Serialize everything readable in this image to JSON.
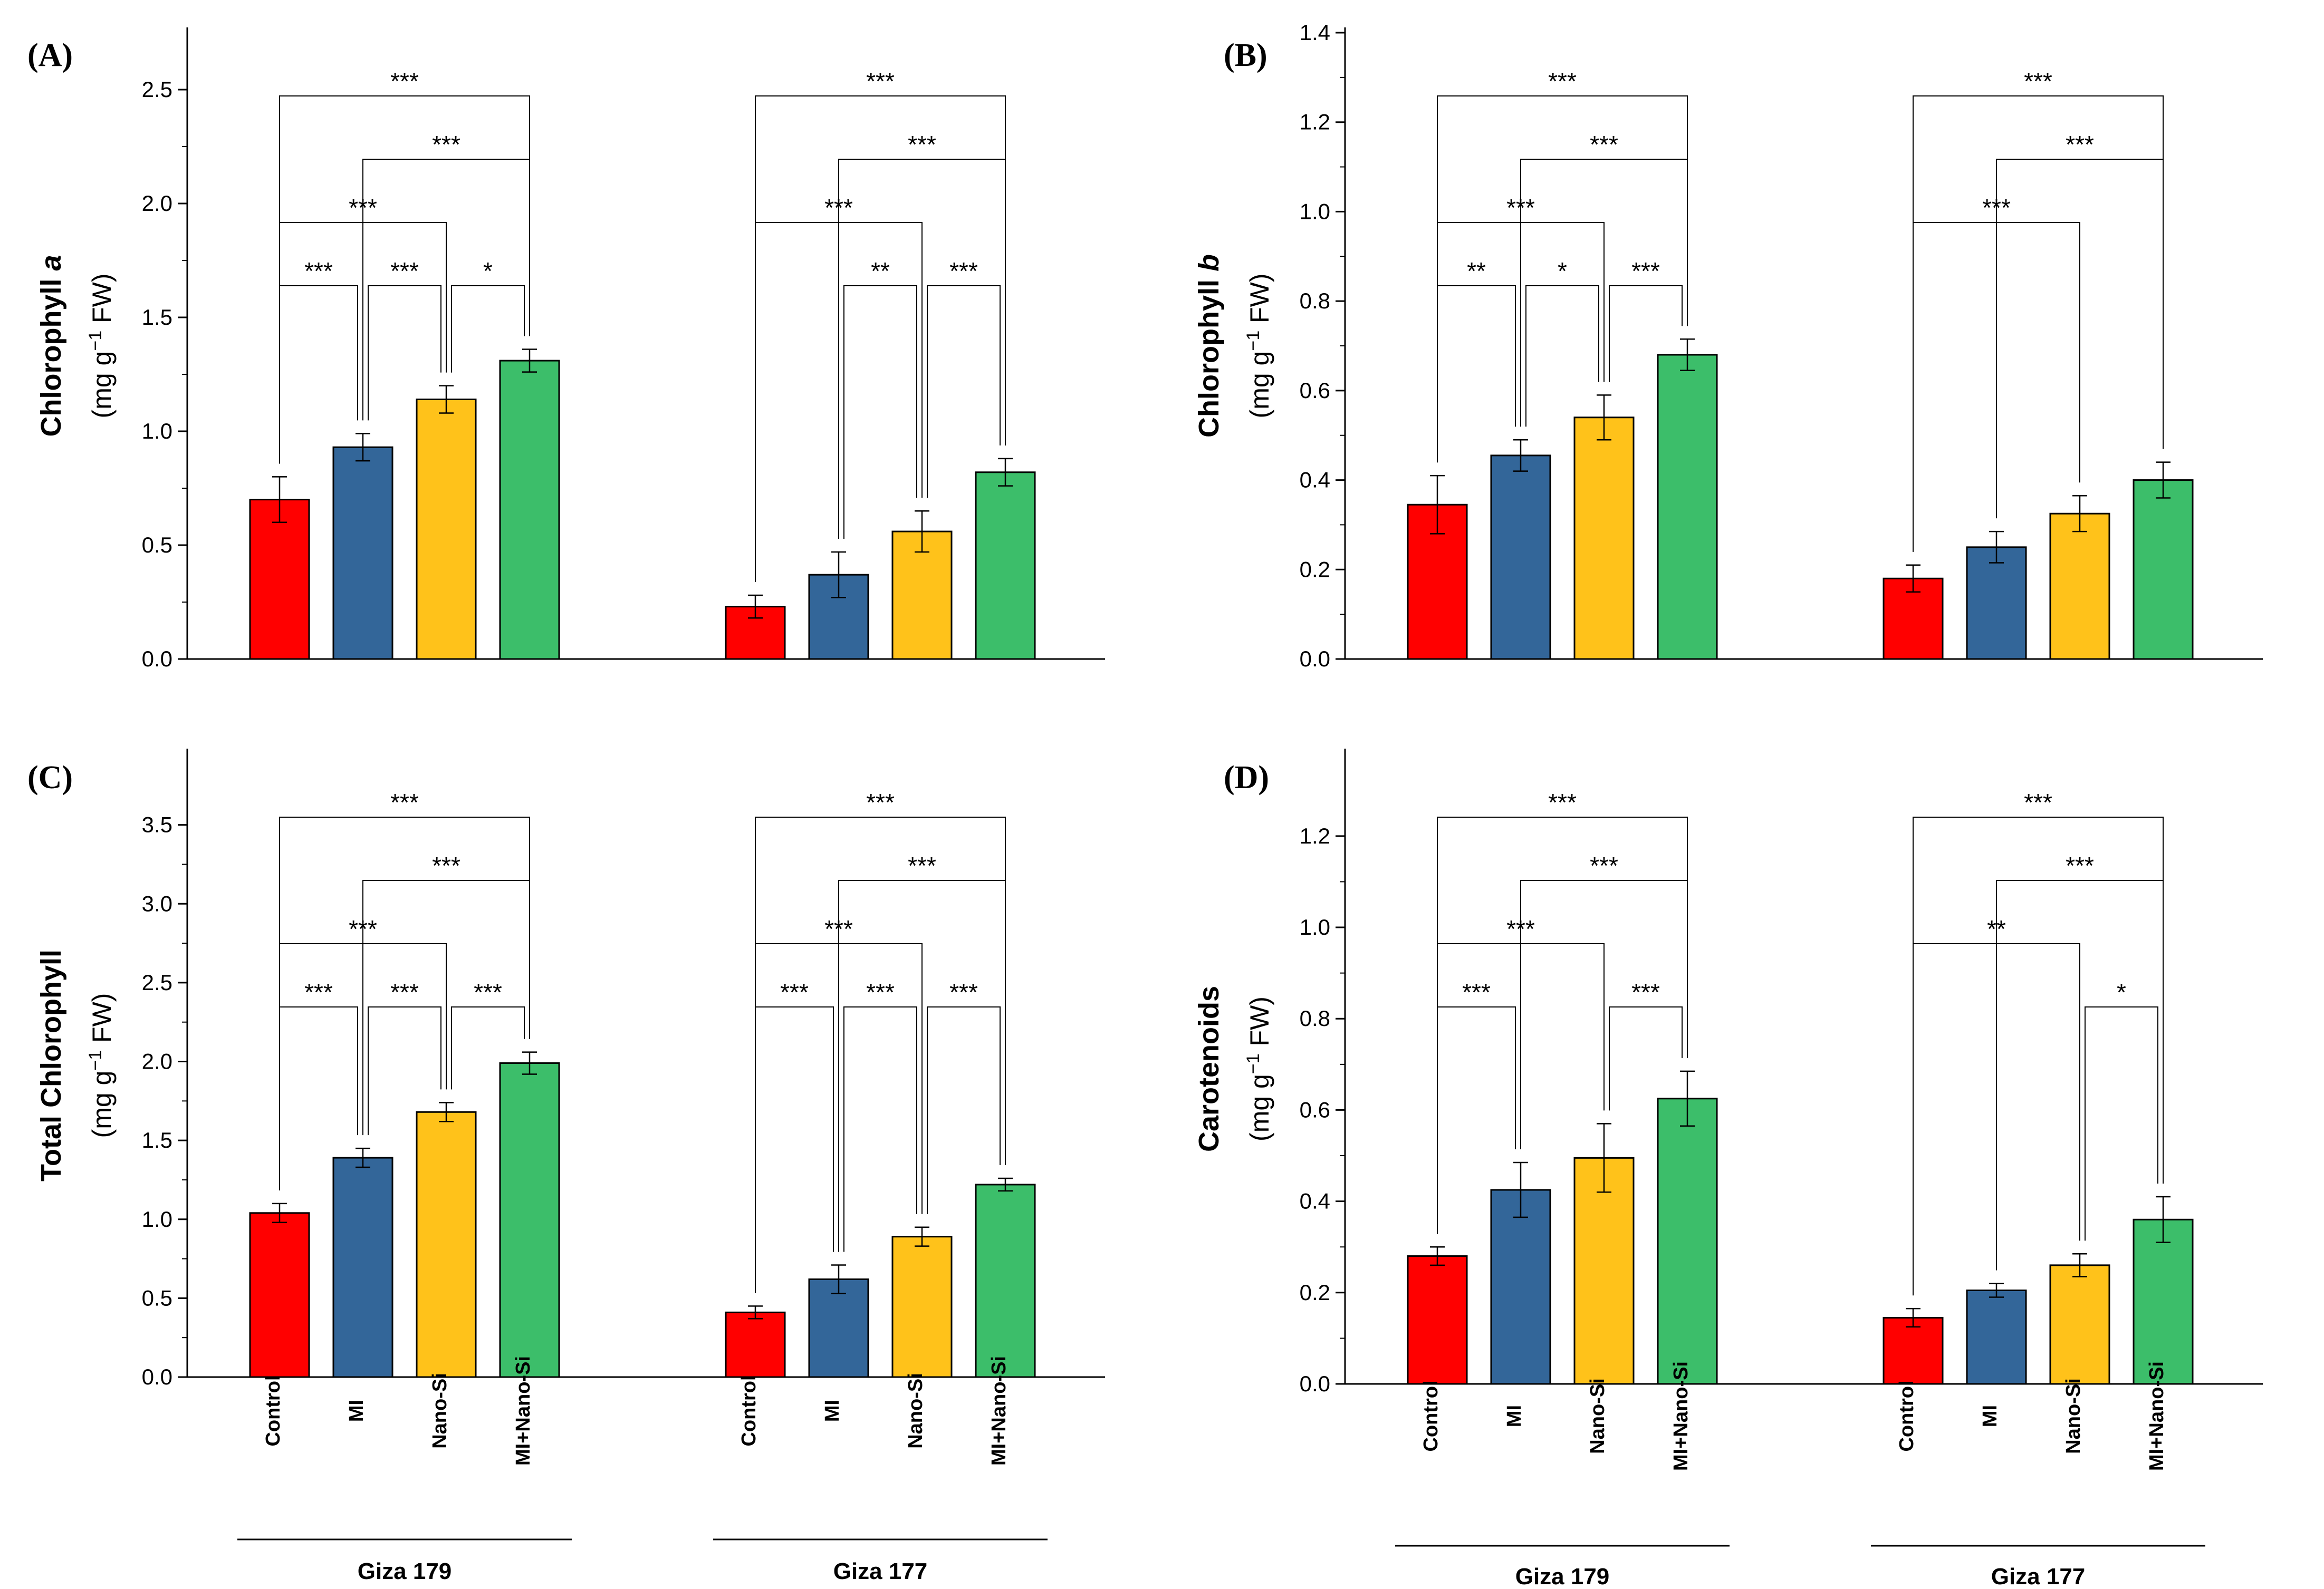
{
  "chart_data": [
    {
      "type": "bar",
      "panel": "(A)",
      "title": "",
      "ylabel_main": "Chlorophyll ",
      "ylabel_italic": "a",
      "ylabel_unit_pre": "(mg g",
      "ylabel_unit_sup": "−1",
      "ylabel_unit_post": " FW)",
      "ylim": [
        0,
        2.75
      ],
      "yticks": [
        "0.0",
        "0.5",
        "1.0",
        "1.5",
        "2.0",
        "2.5"
      ],
      "categories": [
        "Control",
        "MI",
        "Nano-Si",
        "MI+Nano-Si"
      ],
      "groups": [
        "Giza 179",
        "Giza 177"
      ],
      "values": [
        [
          0.7,
          0.93,
          1.14,
          1.31
        ],
        [
          0.23,
          0.37,
          0.56,
          0.82
        ]
      ],
      "errors": [
        [
          0.1,
          0.06,
          0.06,
          0.05
        ],
        [
          0.05,
          0.1,
          0.09,
          0.06
        ]
      ],
      "significance": [
        [
          [
            0,
            3,
            "***"
          ],
          [
            1,
            3,
            "***"
          ],
          [
            0,
            2,
            "***"
          ],
          [
            0,
            1,
            "***"
          ],
          [
            1,
            2,
            "***"
          ],
          [
            2,
            3,
            "*"
          ]
        ],
        [
          [
            0,
            3,
            "***"
          ],
          [
            1,
            3,
            "***"
          ],
          [
            0,
            2,
            "***"
          ],
          [
            1,
            2,
            "**"
          ],
          [
            2,
            3,
            "***"
          ]
        ]
      ]
    },
    {
      "type": "bar",
      "panel": "(B)",
      "title": "",
      "ylabel_main": "Chlorophyll ",
      "ylabel_italic": "b",
      "ylabel_unit_pre": "(mg g",
      "ylabel_unit_sup": "−1",
      "ylabel_unit_post": " FW)",
      "ylim": [
        0,
        1.4
      ],
      "yticks": [
        "0.0",
        "0.2",
        "0.4",
        "0.6",
        "0.8",
        "1.0",
        "1.2",
        "1.4"
      ],
      "categories": [
        "Control",
        "MI",
        "Nano-Si",
        "MI+Nano-Si"
      ],
      "groups": [
        "Giza 179",
        "Giza 177"
      ],
      "values": [
        [
          0.345,
          0.455,
          0.54,
          0.68
        ],
        [
          0.18,
          0.25,
          0.325,
          0.4
        ]
      ],
      "errors": [
        [
          0.065,
          0.035,
          0.05,
          0.035
        ],
        [
          0.03,
          0.035,
          0.04,
          0.04
        ]
      ],
      "significance": [
        [
          [
            0,
            3,
            "***"
          ],
          [
            1,
            3,
            "***"
          ],
          [
            0,
            2,
            "***"
          ],
          [
            0,
            1,
            "**"
          ],
          [
            1,
            2,
            "*"
          ],
          [
            2,
            3,
            "***"
          ]
        ],
        [
          [
            0,
            3,
            "***"
          ],
          [
            1,
            3,
            "***"
          ],
          [
            0,
            2,
            "***"
          ]
        ]
      ]
    },
    {
      "type": "bar",
      "panel": "(C)",
      "title": "",
      "ylabel_main": "Total Chlorophyll",
      "ylabel_italic": "",
      "ylabel_unit_pre": "(mg g",
      "ylabel_unit_sup": "−1",
      "ylabel_unit_post": " FW)",
      "ylim": [
        0,
        3.95
      ],
      "yticks": [
        "0.0",
        "0.5",
        "1.0",
        "1.5",
        "2.0",
        "2.5",
        "3.0",
        "3.5"
      ],
      "categories": [
        "Control",
        "MI",
        "Nano-Si",
        "MI+Nano-Si"
      ],
      "groups": [
        "Giza 179",
        "Giza 177"
      ],
      "values": [
        [
          1.04,
          1.39,
          1.68,
          1.99
        ],
        [
          0.41,
          0.62,
          0.89,
          1.22
        ]
      ],
      "errors": [
        [
          0.06,
          0.06,
          0.06,
          0.07
        ],
        [
          0.04,
          0.09,
          0.06,
          0.04
        ]
      ],
      "significance": [
        [
          [
            0,
            3,
            "***"
          ],
          [
            1,
            3,
            "***"
          ],
          [
            0,
            2,
            "***"
          ],
          [
            0,
            1,
            "***"
          ],
          [
            1,
            2,
            "***"
          ],
          [
            2,
            3,
            "***"
          ]
        ],
        [
          [
            0,
            3,
            "***"
          ],
          [
            1,
            3,
            "***"
          ],
          [
            0,
            2,
            "***"
          ],
          [
            0,
            1,
            "***"
          ],
          [
            1,
            2,
            "***"
          ],
          [
            2,
            3,
            "***"
          ]
        ]
      ]
    },
    {
      "type": "bar",
      "panel": "(D)",
      "title": "",
      "ylabel_main": "Carotenoids",
      "ylabel_italic": "",
      "ylabel_unit_pre": "(mg g",
      "ylabel_unit_sup": "−1",
      "ylabel_unit_post": " FW)",
      "ylim": [
        0,
        1.38
      ],
      "yticks": [
        "0.0",
        "0.2",
        "0.4",
        "0.6",
        "0.8",
        "1.0",
        "1.2"
      ],
      "categories": [
        "Control",
        "MI",
        "Nano-Si",
        "MI+Nano-Si"
      ],
      "groups": [
        "Giza 179",
        "Giza 177"
      ],
      "values": [
        [
          0.28,
          0.425,
          0.495,
          0.625
        ],
        [
          0.145,
          0.205,
          0.26,
          0.36
        ]
      ],
      "errors": [
        [
          0.02,
          0.06,
          0.075,
          0.06
        ],
        [
          0.02,
          0.015,
          0.025,
          0.05
        ]
      ],
      "significance": [
        [
          [
            0,
            3,
            "***"
          ],
          [
            1,
            3,
            "***"
          ],
          [
            0,
            2,
            "***"
          ],
          [
            0,
            1,
            "***"
          ],
          [
            2,
            3,
            "***"
          ]
        ],
        [
          [
            0,
            3,
            "***"
          ],
          [
            1,
            3,
            "***"
          ],
          [
            0,
            2,
            "**"
          ],
          [
            2,
            3,
            "*"
          ]
        ]
      ]
    }
  ],
  "colors": {
    "Control": "#ff0000",
    "MI": "#336699",
    "Nano-Si": "#ffc21a",
    "MI+Nano-Si": "#3cbe6a"
  }
}
